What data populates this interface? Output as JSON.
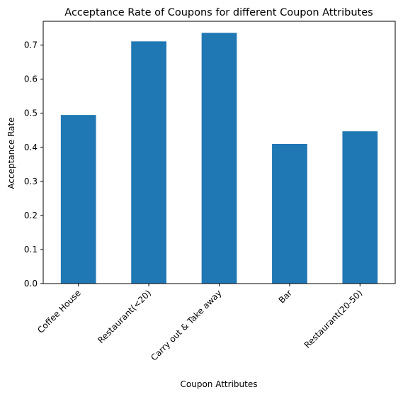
{
  "chart_data": {
    "type": "bar",
    "title": "Acceptance Rate of Coupons for different Coupon Attributes",
    "xlabel": "Coupon Attributes",
    "ylabel": "Acceptance Rate",
    "categories": [
      "Coffee House",
      "Restaurant(<20)",
      "Carry out & Take away",
      "Bar",
      "Restaurant(20-50)"
    ],
    "values": [
      0.495,
      0.711,
      0.736,
      0.41,
      0.447
    ],
    "ylim": [
      0,
      0.77
    ],
    "yticks": [
      "0.0",
      "0.1",
      "0.2",
      "0.3",
      "0.4",
      "0.5",
      "0.6",
      "0.7"
    ],
    "grid": false,
    "legend": "none",
    "bar_color": "#1f77b4"
  }
}
